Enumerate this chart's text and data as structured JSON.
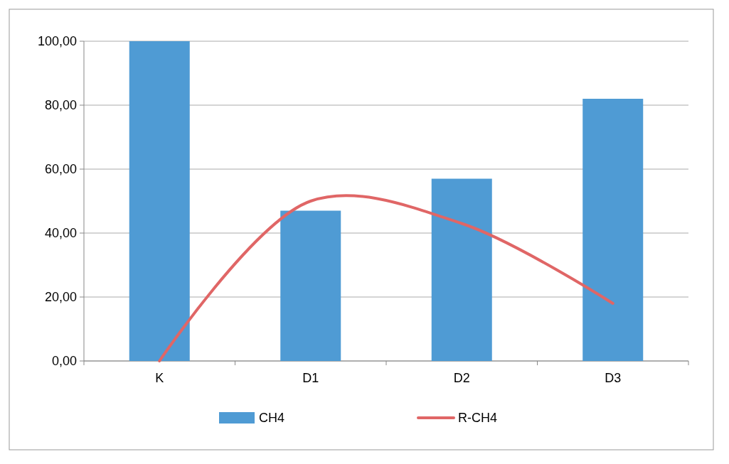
{
  "chart_data": {
    "type": "bar",
    "categories": [
      "K",
      "D1",
      "D2",
      "D3"
    ],
    "series": [
      {
        "name": "CH4",
        "color": "#4f9bd4",
        "values": [
          100,
          47,
          57,
          82
        ]
      },
      {
        "name": "R-CH4",
        "type": "line",
        "color": "#e06666",
        "values": [
          0,
          50,
          43,
          18
        ]
      }
    ],
    "ylim": [
      0,
      100
    ],
    "yticks": [
      {
        "value": 0,
        "label": "0,00"
      },
      {
        "value": 20,
        "label": "20,00"
      },
      {
        "value": 40,
        "label": "40,00"
      },
      {
        "value": 60,
        "label": "60,00"
      },
      {
        "value": 80,
        "label": "80,00"
      },
      {
        "value": 100,
        "label": "100,00"
      }
    ],
    "grid": "y",
    "legend": "bottom"
  }
}
